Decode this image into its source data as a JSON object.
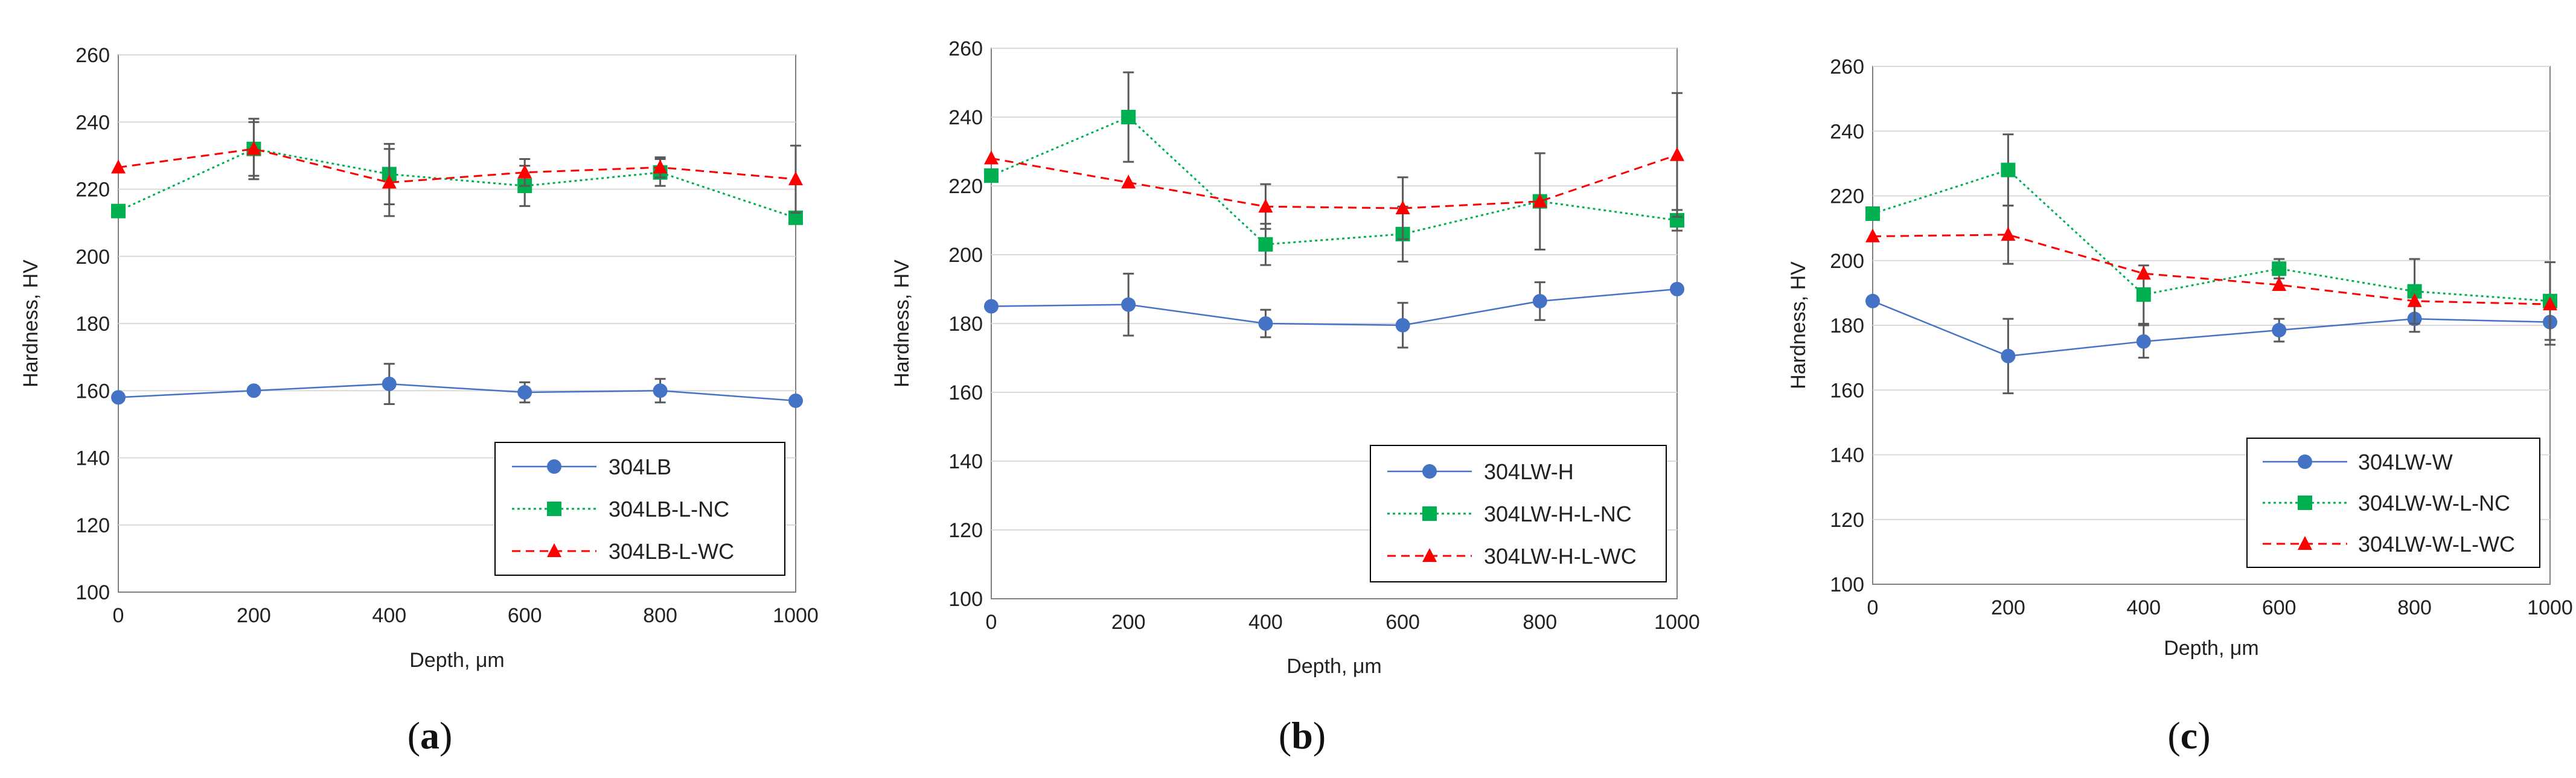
{
  "chart_data": [
    {
      "type": "line",
      "panel_label": "a",
      "title": "",
      "xlabel": "Depth, μm",
      "ylabel": "Hardness, HV",
      "xlim": [
        0,
        1000
      ],
      "ylim": [
        100,
        260
      ],
      "xticks": [
        0,
        200,
        400,
        600,
        800,
        1000
      ],
      "yticks": [
        100,
        120,
        140,
        160,
        180,
        200,
        220,
        240,
        260
      ],
      "x": [
        0,
        200,
        400,
        600,
        800,
        1000
      ],
      "legend_position": "bottom-right",
      "series": [
        {
          "name": "304LB",
          "style": "solid",
          "marker": "circle",
          "color": "#4472C4",
          "values": [
            158,
            160,
            162,
            159.5,
            160,
            157
          ],
          "errors": [
            0,
            0,
            6,
            3,
            3.5,
            0
          ]
        },
        {
          "name": "304LB-L-NC",
          "style": "dotted",
          "marker": "square",
          "color": "#00B050",
          "values": [
            213.5,
            232,
            224.5,
            221,
            225,
            211.5
          ],
          "errors": [
            0,
            9,
            9,
            6,
            4,
            0
          ]
        },
        {
          "name": "304LB-L-WC",
          "style": "dashed",
          "marker": "triangle",
          "color": "#FF0000",
          "values": [
            226.5,
            232,
            222,
            225,
            226.5,
            223
          ],
          "errors": [
            0,
            8,
            10,
            4,
            3,
            10
          ]
        }
      ]
    },
    {
      "type": "line",
      "panel_label": "b",
      "title": "",
      "xlabel": "Depth, μm",
      "ylabel": "Hardness, HV",
      "xlim": [
        0,
        1000
      ],
      "ylim": [
        100,
        260
      ],
      "xticks": [
        0,
        200,
        400,
        600,
        800,
        1000
      ],
      "yticks": [
        100,
        120,
        140,
        160,
        180,
        200,
        220,
        240,
        260
      ],
      "x": [
        0,
        200,
        400,
        600,
        800,
        1000
      ],
      "legend_position": "bottom-right",
      "series": [
        {
          "name": "304LW-H",
          "style": "solid",
          "marker": "circle",
          "color": "#4472C4",
          "values": [
            185,
            185.5,
            180,
            179.5,
            186.5,
            190
          ],
          "errors": [
            0,
            9,
            4,
            6.5,
            5.5,
            0
          ]
        },
        {
          "name": "304LW-H-L-NC",
          "style": "dotted",
          "marker": "square",
          "color": "#00B050",
          "values": [
            223,
            240,
            203,
            206,
            215.5,
            210
          ],
          "errors": [
            0,
            13,
            6,
            8,
            0,
            3
          ]
        },
        {
          "name": "304LW-H-L-WC",
          "style": "dashed",
          "marker": "triangle",
          "color": "#FF0000",
          "values": [
            228,
            221,
            214,
            213.5,
            215.5,
            229
          ],
          "errors": [
            0,
            0,
            6.5,
            9,
            14,
            18
          ]
        }
      ]
    },
    {
      "type": "line",
      "panel_label": "c",
      "title": "",
      "xlabel": "Depth, μm",
      "ylabel": "Hardness, HV",
      "xlim": [
        0,
        1000
      ],
      "ylim": [
        100,
        260
      ],
      "xticks": [
        0,
        200,
        400,
        600,
        800,
        1000
      ],
      "yticks": [
        100,
        120,
        140,
        160,
        180,
        200,
        220,
        240,
        260
      ],
      "x": [
        0,
        200,
        400,
        600,
        800,
        1000
      ],
      "legend_position": "bottom-right",
      "series": [
        {
          "name": "304LW-W",
          "style": "solid",
          "marker": "circle",
          "color": "#4472C4",
          "values": [
            187.5,
            170.5,
            175,
            178.5,
            182,
            181
          ],
          "errors": [
            0,
            11.5,
            5,
            3.5,
            4,
            7
          ]
        },
        {
          "name": "304LW-W-L-NC",
          "style": "dotted",
          "marker": "square",
          "color": "#00B050",
          "values": [
            214.5,
            228,
            189.5,
            197.5,
            190.5,
            187.5
          ],
          "errors": [
            0,
            11,
            9,
            3,
            10,
            12
          ]
        },
        {
          "name": "304LW-W-L-WC",
          "style": "dashed",
          "marker": "triangle",
          "color": "#FF0000",
          "values": [
            207.5,
            208,
            196,
            192.5,
            187.5,
            186.5
          ],
          "errors": [
            0,
            9,
            0,
            0,
            0,
            0
          ]
        }
      ]
    }
  ]
}
